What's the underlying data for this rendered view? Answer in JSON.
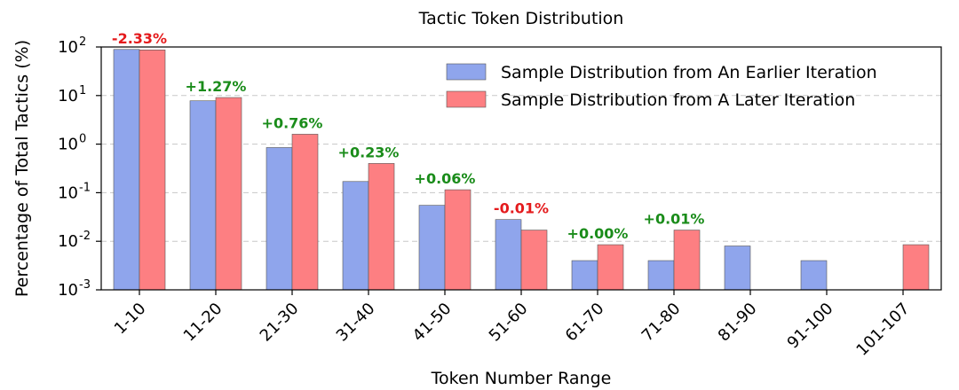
{
  "chart_data": {
    "type": "bar",
    "title": "Tactic Token Distribution",
    "xlabel": "Token Number Range",
    "ylabel": "Percentage of Total Tactics (%)",
    "yscale": "log",
    "ylim": [
      0.001,
      100
    ],
    "yticks": [
      {
        "base": "10",
        "exp": "-3",
        "value": 0.001
      },
      {
        "base": "10",
        "exp": "-2",
        "value": 0.01
      },
      {
        "base": "10",
        "exp": "-1",
        "value": 0.1
      },
      {
        "base": "10",
        "exp": "0",
        "value": 1
      },
      {
        "base": "10",
        "exp": "1",
        "value": 10
      },
      {
        "base": "10",
        "exp": "2",
        "value": 100
      }
    ],
    "categories": [
      "1-10",
      "11-20",
      "21-30",
      "31-40",
      "41-50",
      "51-60",
      "61-70",
      "71-80",
      "81-90",
      "91-100",
      "101-107"
    ],
    "series": [
      {
        "name": "Sample Distribution from An Earlier Iteration",
        "color": "#8fa5ec",
        "values": [
          89,
          7.8,
          0.85,
          0.17,
          0.055,
          0.028,
          0.004,
          0.004,
          0.008,
          0.004,
          null
        ]
      },
      {
        "name": "Sample Distribution from A Later Iteration",
        "color": "#fd7f82",
        "values": [
          87,
          9.1,
          1.6,
          0.4,
          0.115,
          0.017,
          0.0085,
          0.017,
          null,
          null,
          0.0085
        ]
      }
    ],
    "annotations": [
      {
        "category": "1-10",
        "text": "-2.33%",
        "color": "#e41a1c"
      },
      {
        "category": "11-20",
        "text": "+1.27%",
        "color": "#1a8c1a"
      },
      {
        "category": "21-30",
        "text": "+0.76%",
        "color": "#1a8c1a"
      },
      {
        "category": "31-40",
        "text": "+0.23%",
        "color": "#1a8c1a"
      },
      {
        "category": "41-50",
        "text": "+0.06%",
        "color": "#1a8c1a"
      },
      {
        "category": "51-60",
        "text": "-0.01%",
        "color": "#e41a1c"
      },
      {
        "category": "61-70",
        "text": "+0.00%",
        "color": "#1a8c1a"
      },
      {
        "category": "71-80",
        "text": "+0.01%",
        "color": "#1a8c1a"
      }
    ],
    "grid": "y-dashed",
    "legend_position": "top-right"
  }
}
